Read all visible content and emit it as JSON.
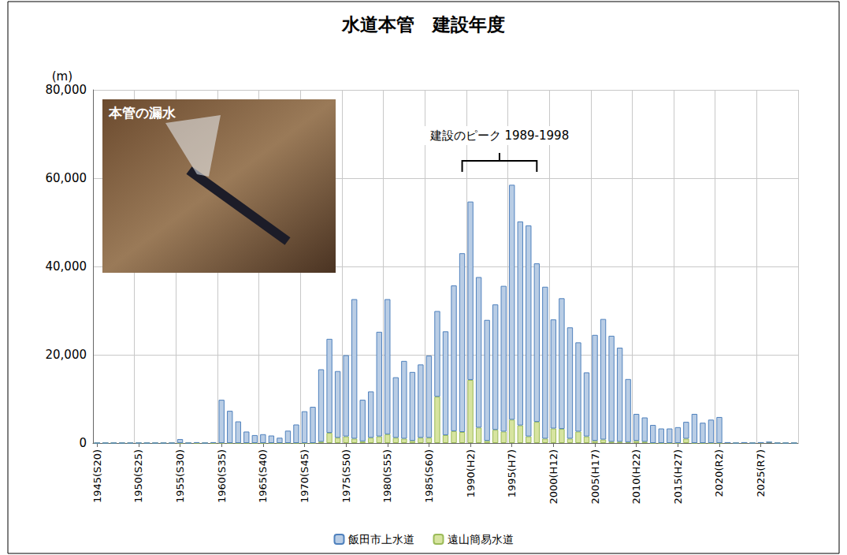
{
  "chart_data": {
    "type": "bar",
    "title": "水道本管　建設年度",
    "y_label": "(m)",
    "x": [
      1945,
      1946,
      1947,
      1948,
      1949,
      1950,
      1951,
      1952,
      1953,
      1954,
      1955,
      1956,
      1957,
      1958,
      1959,
      1960,
      1961,
      1962,
      1963,
      1964,
      1965,
      1966,
      1967,
      1968,
      1969,
      1970,
      1971,
      1972,
      1973,
      1974,
      1975,
      1976,
      1977,
      1978,
      1979,
      1980,
      1981,
      1982,
      1983,
      1984,
      1985,
      1986,
      1987,
      1988,
      1989,
      1990,
      1991,
      1992,
      1993,
      1994,
      1995,
      1996,
      1997,
      1998,
      1999,
      2000,
      2001,
      2002,
      2003,
      2004,
      2005,
      2006,
      2007,
      2008,
      2009,
      2010,
      2011,
      2012,
      2013,
      2014,
      2015,
      2016,
      2017,
      2018,
      2019,
      2020,
      2021,
      2022,
      2023,
      2024,
      2025,
      2026,
      2027,
      2028,
      2029
    ],
    "xticks": [
      {
        "value": 1945,
        "label": "1945(S20)"
      },
      {
        "value": 1950,
        "label": "1950(S25)"
      },
      {
        "value": 1955,
        "label": "1955(S30)"
      },
      {
        "value": 1960,
        "label": "1960(S35)"
      },
      {
        "value": 1965,
        "label": "1965(S40)"
      },
      {
        "value": 1970,
        "label": "1970(S45)"
      },
      {
        "value": 1975,
        "label": "1975(S50)"
      },
      {
        "value": 1980,
        "label": "1980(S55)"
      },
      {
        "value": 1985,
        "label": "1985(S60)"
      },
      {
        "value": 1990,
        "label": "1990(H2)"
      },
      {
        "value": 1995,
        "label": "1995(H7)"
      },
      {
        "value": 2000,
        "label": "2000(H12)"
      },
      {
        "value": 2005,
        "label": "2005(H17)"
      },
      {
        "value": 2010,
        "label": "2010(H22)"
      },
      {
        "value": 2015,
        "label": "2015(H27)"
      },
      {
        "value": 2020,
        "label": "2020(R2)"
      },
      {
        "value": 2025,
        "label": "2025(R7)"
      }
    ],
    "ylim": [
      0,
      80000
    ],
    "yticks": [
      0,
      {
        "value": 20000,
        "label": "20,000"
      },
      {
        "value": 40000,
        "label": "40,000"
      },
      {
        "value": 60000,
        "label": "60,000"
      },
      {
        "value": 80000,
        "label": "80,000"
      }
    ],
    "series": [
      {
        "name": "飯田市上水道",
        "color": "#b9cde5",
        "values": [
          0,
          0,
          0,
          0,
          0,
          0,
          0,
          0,
          0,
          0,
          900,
          0,
          200,
          0,
          200,
          9800,
          7300,
          4900,
          2600,
          1800,
          2000,
          1700,
          1200,
          2800,
          4200,
          7200,
          8200,
          16400,
          21300,
          15100,
          18400,
          31600,
          9400,
          10500,
          23700,
          30600,
          13700,
          17600,
          15600,
          16600,
          18600,
          19400,
          23500,
          33000,
          40500,
          40400,
          34100,
          27400,
          28400,
          33000,
          53200,
          46200,
          47800,
          35900,
          34400,
          24700,
          29600,
          25200,
          20200,
          14500,
          24000,
          27300,
          24000,
          21300,
          14300,
          6100,
          5500,
          4100,
          3300,
          3300,
          3600,
          3800,
          6600,
          4600,
          5300,
          5900,
          0,
          0,
          0,
          0,
          0,
          0,
          0,
          0,
          0
        ]
      },
      {
        "name": "遠山簡易水道",
        "color": "#d7e4a0",
        "values": [
          0,
          0,
          0,
          0,
          0,
          0,
          0,
          0,
          0,
          0,
          0,
          0,
          0,
          0,
          0,
          0,
          0,
          0,
          0,
          0,
          0,
          0,
          0,
          0,
          0,
          0,
          0,
          300,
          2300,
          1200,
          1500,
          1000,
          400,
          1200,
          1500,
          2000,
          1200,
          1000,
          500,
          1200,
          1200,
          10500,
          1800,
          2700,
          2500,
          14300,
          3500,
          500,
          3000,
          2600,
          5300,
          4000,
          1500,
          4800,
          1000,
          3300,
          3200,
          1000,
          2600,
          1500,
          500,
          800,
          300,
          300,
          200,
          500,
          300,
          0,
          0,
          0,
          0,
          1000,
          0,
          0,
          0,
          0,
          100,
          0,
          100,
          0,
          100,
          200,
          0,
          0,
          0
        ]
      }
    ],
    "stacked": true,
    "grid": true,
    "legend": "bottom",
    "annotations": [
      {
        "text": "建設のピーク 1989-1998",
        "x": [
          1989,
          1998
        ]
      },
      {
        "text": "本管の漏水"
      }
    ]
  }
}
